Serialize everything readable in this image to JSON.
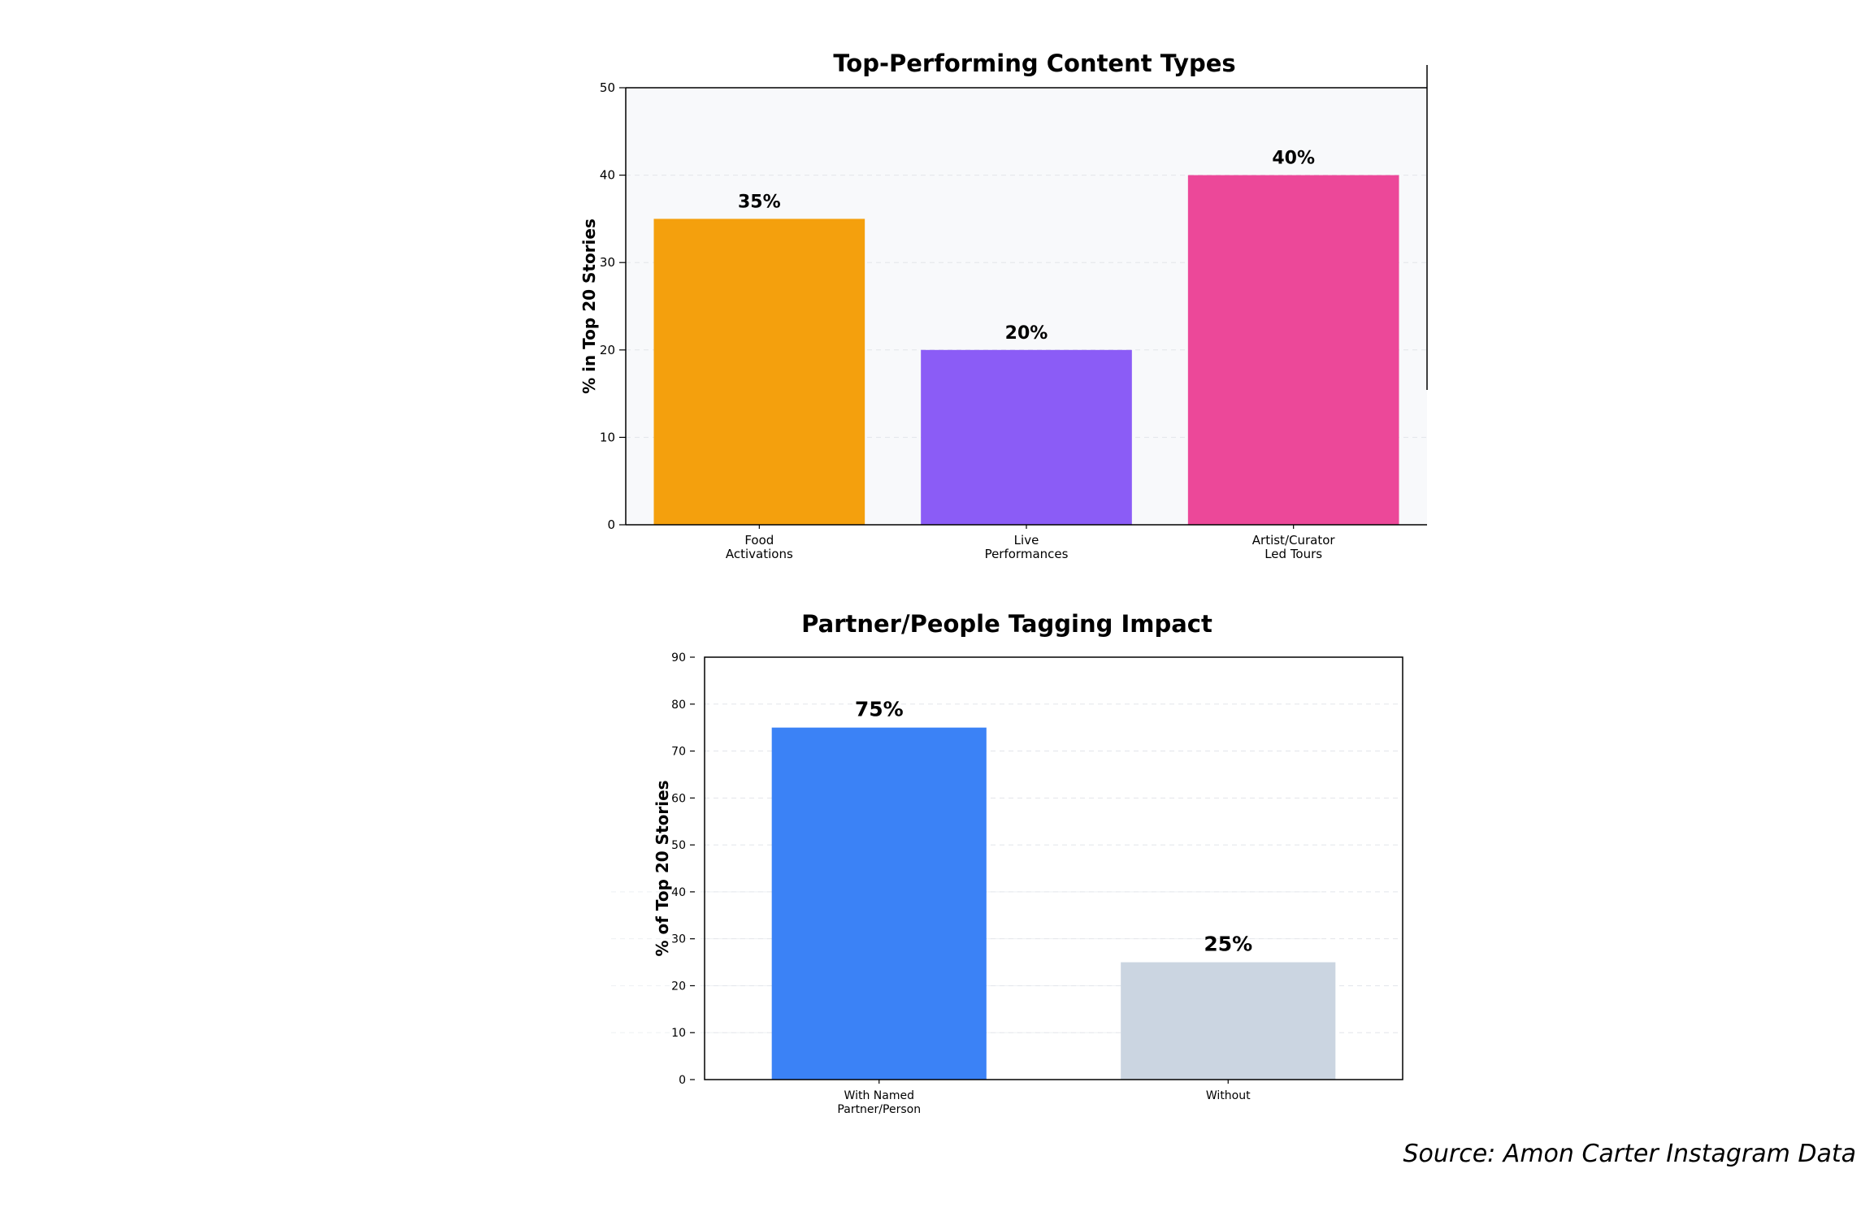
{
  "chart_data": [
    {
      "type": "bar",
      "title": "Top-Performing Content Types",
      "xlabel": "",
      "ylabel": "% in Top 20 Stories",
      "categories": [
        [
          "Food",
          "Activations"
        ],
        [
          "Live",
          "Performances"
        ],
        [
          "Artist/Curator",
          "Led Tours"
        ]
      ],
      "values": [
        35,
        20,
        40
      ],
      "data_labels": [
        "35%",
        "20%",
        "40%"
      ],
      "colors": [
        "#f4a00d",
        "#8b5cf6",
        "#ec4899"
      ],
      "ylim": [
        0,
        50
      ],
      "yticks": [
        0,
        10,
        20,
        30,
        40,
        50
      ],
      "grid": true,
      "background": "#f8f9fb"
    },
    {
      "type": "bar",
      "title": "Partner/People Tagging Impact",
      "xlabel": "",
      "ylabel": "% of Top 20 Stories",
      "categories": [
        [
          "With Named",
          "Partner/Person"
        ],
        [
          "Without"
        ]
      ],
      "values": [
        75,
        25
      ],
      "data_labels": [
        "75%",
        "25%"
      ],
      "colors": [
        "#3b82f6",
        "#cbd5e1"
      ],
      "ylim": [
        0,
        90
      ],
      "yticks": [
        0,
        10,
        20,
        30,
        40,
        50,
        60,
        70,
        80,
        90
      ],
      "grid": true,
      "background": "#ffffff"
    }
  ],
  "source": "Source: Amon Carter Instagram Data"
}
